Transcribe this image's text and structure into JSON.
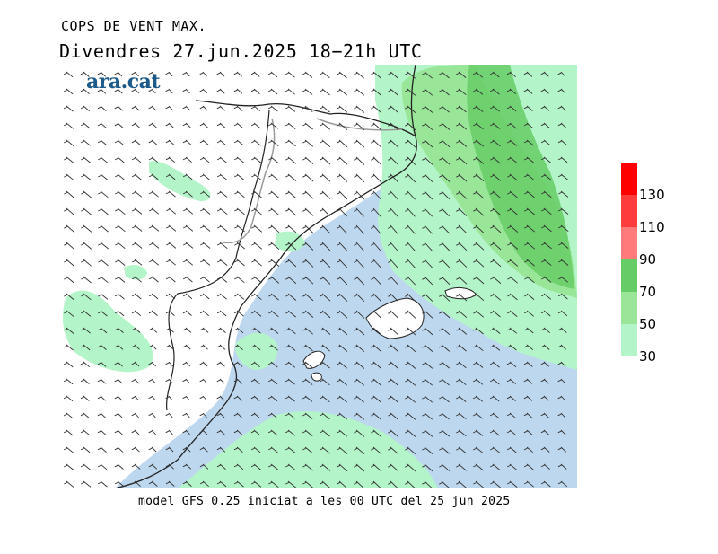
{
  "header": {
    "title": "COPS DE VENT MAX.",
    "subtitle": "Divendres  27.jun.2025 18−21h UTC"
  },
  "brand": {
    "name": "ara.cat"
  },
  "footer": {
    "model_note": "model GFS 0.25 iniciat a les 00 UTC del 25 jun 2025"
  },
  "legend": {
    "bins": [
      {
        "from": 130,
        "color": "#ff0000"
      },
      {
        "from": 110,
        "color": "#ff3c3c"
      },
      {
        "from": 90,
        "color": "#ff7a7a"
      },
      {
        "from": 70,
        "color": "#66cc66"
      },
      {
        "from": 50,
        "color": "#99e699"
      },
      {
        "from": 30,
        "color": "#b3f5c8"
      }
    ],
    "labels": [
      "130",
      "110",
      "90",
      "70",
      "50",
      "30"
    ]
  },
  "colors": {
    "sea": "#bdd7ee",
    "land": "#ffffff",
    "gust_30": "#b3f5c8",
    "gust_50": "#99e699",
    "gust_70": "#66cc66",
    "border": "#222222",
    "regional_border": "#9a9a9a"
  }
}
